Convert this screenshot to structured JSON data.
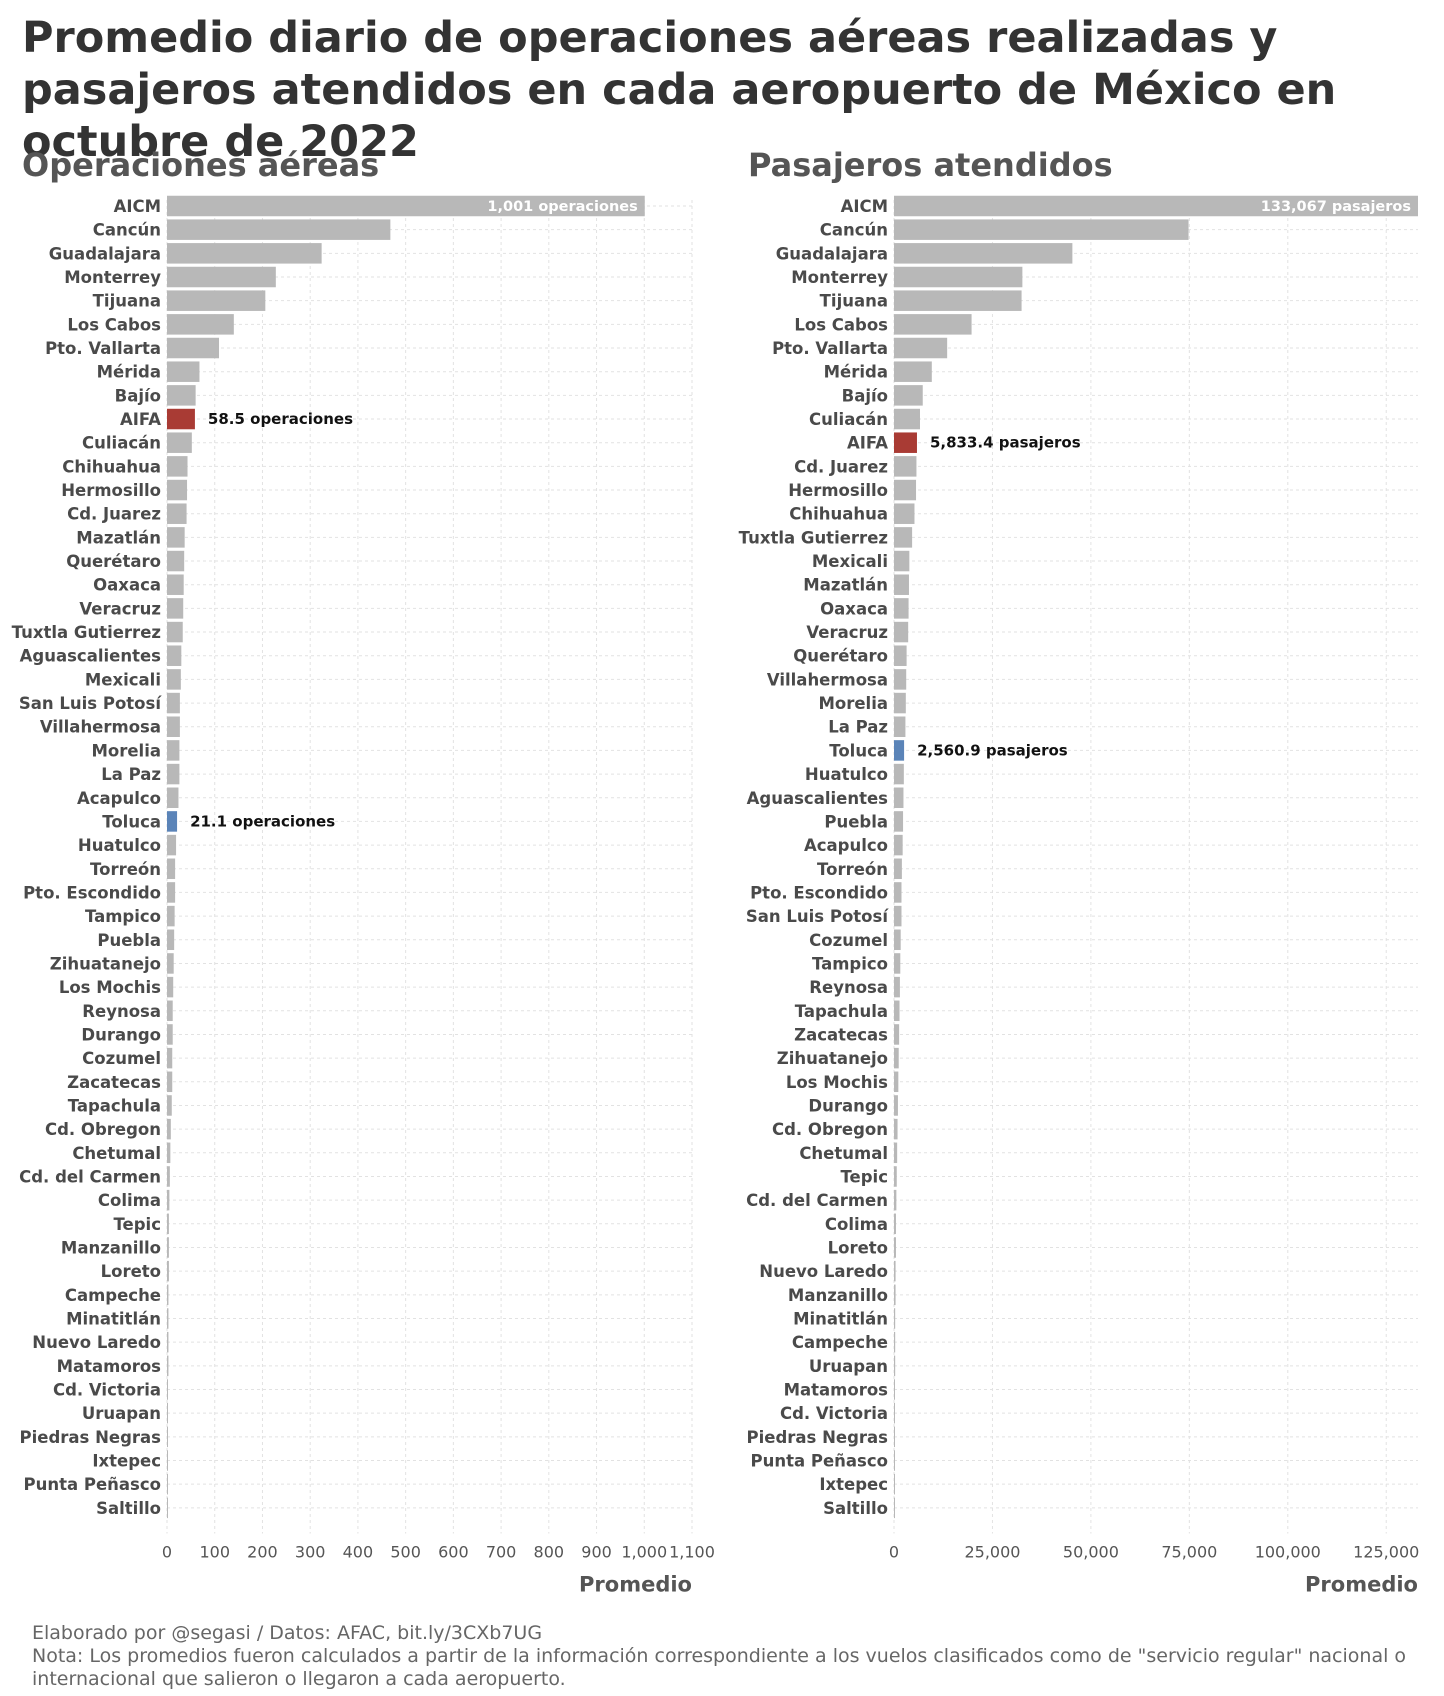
{
  "title": "Promedio diario de operaciones aéreas realizadas y pasajeros atendidos en cada aeropuerto de México en octubre de 2022",
  "colors": {
    "bar": "#b8b8b8",
    "aifa": "#a93b34",
    "toluca": "#5b84b8",
    "grid": "#e2e2e2",
    "label": "#4a4a4a",
    "axis": "#555555"
  },
  "chart_data": [
    {
      "type": "bar",
      "orientation": "horizontal",
      "title": "Operaciones aéreas",
      "xlabel": "Promedio",
      "xlim": [
        0,
        1100
      ],
      "xticks": [
        0,
        100,
        200,
        300,
        400,
        500,
        600,
        700,
        800,
        900,
        1000,
        1100
      ],
      "xtick_labels": [
        "0",
        "100",
        "200",
        "300",
        "400",
        "500",
        "600",
        "700",
        "800",
        "900",
        "1,000",
        "1,100"
      ],
      "grid": true,
      "categories": [
        "AICM",
        "Cancún",
        "Guadalajara",
        "Monterrey",
        "Tijuana",
        "Los Cabos",
        "Pto. Vallarta",
        "Mérida",
        "Bajío",
        "AIFA",
        "Culiacán",
        "Chihuahua",
        "Hermosillo",
        "Cd. Juarez",
        "Mazatlán",
        "Querétaro",
        "Oaxaca",
        "Veracruz",
        "Tuxtla Gutierrez",
        "Aguascalientes",
        "Mexicali",
        "San Luis Potosí",
        "Villahermosa",
        "Morelia",
        "La Paz",
        "Acapulco",
        "Toluca",
        "Huatulco",
        "Torreón",
        "Pto. Escondido",
        "Tampico",
        "Puebla",
        "Zihuatanejo",
        "Los Mochis",
        "Reynosa",
        "Durango",
        "Cozumel",
        "Zacatecas",
        "Tapachula",
        "Cd. Obregon",
        "Chetumal",
        "Cd. del Carmen",
        "Colima",
        "Tepic",
        "Manzanillo",
        "Loreto",
        "Campeche",
        "Minatitlán",
        "Nuevo Laredo",
        "Matamoros",
        "Cd. Victoria",
        "Uruapan",
        "Piedras Negras",
        "Ixtepec",
        "Punta Peñasco",
        "Saltillo"
      ],
      "values": [
        1001,
        468,
        324,
        228,
        206,
        140,
        109,
        68,
        60,
        58.5,
        52,
        43,
        42,
        41,
        37,
        36,
        35,
        34,
        33,
        30,
        29,
        27,
        27,
        26,
        26,
        24,
        21.1,
        19,
        17,
        17,
        16,
        15,
        14,
        13,
        12,
        12,
        11,
        11,
        10,
        8,
        7,
        6,
        5,
        4,
        4,
        4,
        3,
        3,
        3,
        3,
        2,
        2,
        2,
        1,
        1,
        1
      ],
      "annotations": [
        {
          "category": "AICM",
          "text": "1,001 operaciones",
          "placement": "inside-end"
        },
        {
          "category": "AIFA",
          "text": "58.5 operaciones",
          "placement": "outside"
        },
        {
          "category": "Toluca",
          "text": "21.1 operaciones",
          "placement": "outside"
        }
      ],
      "highlights": {
        "AIFA": "aifa",
        "Toluca": "toluca"
      }
    },
    {
      "type": "bar",
      "orientation": "horizontal",
      "title": "Pasajeros atendidos",
      "xlabel": "Promedio",
      "xlim": [
        0,
        133067
      ],
      "xticks": [
        0,
        25000,
        50000,
        75000,
        100000,
        125000
      ],
      "xtick_labels": [
        "0",
        "25,000",
        "50,000",
        "75,000",
        "100,000",
        "125,000"
      ],
      "grid": true,
      "categories": [
        "AICM",
        "Cancún",
        "Guadalajara",
        "Monterrey",
        "Tijuana",
        "Los Cabos",
        "Pto. Vallarta",
        "Mérida",
        "Bajío",
        "Culiacán",
        "AIFA",
        "Cd. Juarez",
        "Hermosillo",
        "Chihuahua",
        "Tuxtla Gutierrez",
        "Mexicali",
        "Mazatlán",
        "Oaxaca",
        "Veracruz",
        "Querétaro",
        "Villahermosa",
        "Morelia",
        "La Paz",
        "Toluca",
        "Huatulco",
        "Aguascalientes",
        "Puebla",
        "Acapulco",
        "Torreón",
        "Pto. Escondido",
        "San Luis Potosí",
        "Cozumel",
        "Tampico",
        "Reynosa",
        "Tapachula",
        "Zacatecas",
        "Zihuatanejo",
        "Los Mochis",
        "Durango",
        "Cd. Obregon",
        "Chetumal",
        "Tepic",
        "Cd. del Carmen",
        "Colima",
        "Loreto",
        "Nuevo Laredo",
        "Manzanillo",
        "Minatitlán",
        "Campeche",
        "Uruapan",
        "Matamoros",
        "Cd. Victoria",
        "Piedras Negras",
        "Punta Peñasco",
        "Ixtepec",
        "Saltillo"
      ],
      "values": [
        133067,
        74800,
        45300,
        32600,
        32400,
        19700,
        13500,
        9600,
        7300,
        6600,
        5833.4,
        5700,
        5600,
        5200,
        4600,
        3900,
        3800,
        3700,
        3600,
        3200,
        3100,
        3000,
        2900,
        2560.9,
        2500,
        2400,
        2300,
        2200,
        2000,
        1900,
        1900,
        1700,
        1600,
        1500,
        1400,
        1300,
        1200,
        1100,
        1000,
        900,
        800,
        700,
        600,
        500,
        500,
        400,
        400,
        300,
        300,
        300,
        200,
        200,
        100,
        100,
        100,
        100
      ],
      "annotations": [
        {
          "category": "AICM",
          "text": "133,067 pasajeros",
          "placement": "inside-end"
        },
        {
          "category": "AIFA",
          "text": "5,833.4 pasajeros",
          "placement": "outside"
        },
        {
          "category": "Toluca",
          "text": "2,560.9 pasajeros",
          "placement": "outside"
        }
      ],
      "highlights": {
        "AIFA": "aifa",
        "Toluca": "toluca"
      }
    }
  ],
  "footer": {
    "credit": "Elaborado por @segasi / Datos: AFAC, bit.ly/3CXb7UG",
    "note": "Nota: Los promedios fueron calculados a partir de la información correspondiente a los vuelos clasificados como de \"servicio regular\" nacional o internacional que salieron o llegaron a cada aeropuerto."
  }
}
